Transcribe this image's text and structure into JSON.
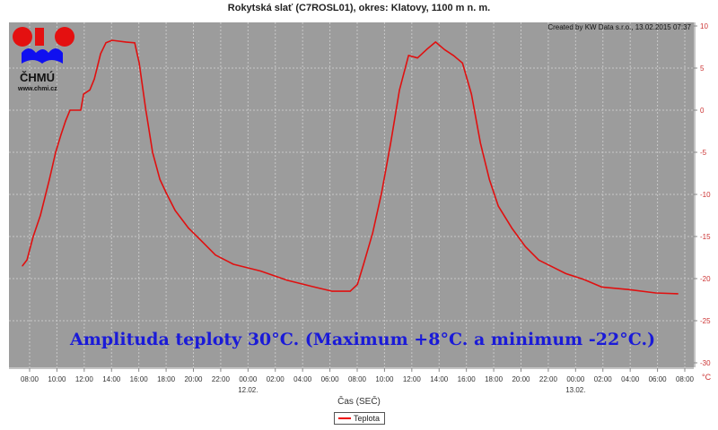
{
  "title": "Rokytská slať (C7ROSL01), okres: Klatovy, 1100 m n. m.",
  "created_by": "Created by KW Data s.r.o., 13.02.2015 07:37",
  "logo": {
    "name": "ČHMÚ",
    "url": "www.chmi.cz"
  },
  "annotation": "Amplituda teploty 30°C. (Maximum +8°C. a minimum -22°C.)",
  "colors": {
    "line": "#e01010",
    "plot_bg": "#9c9c9c",
    "annotation": "#1a1ad8",
    "axis_labels": "#cc3333"
  },
  "chart_data": {
    "type": "line",
    "title": "Rokytská slať (C7ROSL01), okres: Klatovy, 1100 m n. m.",
    "xlabel": "Čas (SEČ)",
    "ylabel": "°C",
    "x_units": "hours since 08:00 on 11.02.",
    "xlim": [
      -1.5,
      48.6
    ],
    "ylim": [
      -30,
      10
    ],
    "grid": true,
    "legend_position": "bottom-center",
    "y_ticks": [
      10,
      5,
      0,
      -5,
      -10,
      -15,
      -20,
      -25,
      -30
    ],
    "x_ticks": [
      {
        "t": 0,
        "label": "08:00"
      },
      {
        "t": 2,
        "label": "10:00"
      },
      {
        "t": 4,
        "label": "12:00"
      },
      {
        "t": 6,
        "label": "14:00"
      },
      {
        "t": 8,
        "label": "16:00"
      },
      {
        "t": 10,
        "label": "18:00"
      },
      {
        "t": 12,
        "label": "20:00"
      },
      {
        "t": 14,
        "label": "22:00"
      },
      {
        "t": 16,
        "label": "00:00",
        "date": "12.02."
      },
      {
        "t": 18,
        "label": "02:00"
      },
      {
        "t": 20,
        "label": "04:00"
      },
      {
        "t": 22,
        "label": "06:00"
      },
      {
        "t": 24,
        "label": "08:00"
      },
      {
        "t": 26,
        "label": "10:00"
      },
      {
        "t": 28,
        "label": "12:00"
      },
      {
        "t": 30,
        "label": "14:00"
      },
      {
        "t": 32,
        "label": "16:00"
      },
      {
        "t": 34,
        "label": "18:00"
      },
      {
        "t": 36,
        "label": "20:00"
      },
      {
        "t": 38,
        "label": "22:00"
      },
      {
        "t": 40,
        "label": "00:00",
        "date": "13.02."
      },
      {
        "t": 42,
        "label": "02:00"
      },
      {
        "t": 44,
        "label": "04:00"
      },
      {
        "t": 46,
        "label": "06:00"
      },
      {
        "t": 48,
        "label": "08:00"
      }
    ],
    "series": [
      {
        "name": "Teplota",
        "x": [
          -0.53,
          -0.2,
          0.26,
          0.79,
          1.45,
          1.91,
          2.3,
          2.63,
          2.96,
          3.75,
          3.95,
          4.41,
          4.74,
          5.2,
          5.59,
          6.05,
          7.04,
          7.7,
          8.03,
          8.49,
          9.01,
          9.54,
          10,
          10.66,
          11.64,
          12.63,
          13.62,
          14.93,
          16.91,
          18.88,
          20.86,
          22.17,
          23.49,
          24.01,
          24.47,
          25.13,
          25.79,
          26.45,
          27.1,
          27.76,
          28.42,
          29.08,
          29.74,
          30.39,
          31.05,
          31.71,
          32.37,
          33.03,
          33.68,
          34.34,
          35.33,
          36.32,
          37.3,
          38.29,
          39.28,
          40.59,
          41.91,
          43.88,
          45.86,
          47.5
        ],
        "values": [
          -18.5,
          -17.8,
          -15,
          -12.5,
          -8.2,
          -5,
          -2.9,
          -1.3,
          0,
          0,
          1.9,
          2.4,
          3.7,
          6.7,
          8,
          8.3,
          8.1,
          8,
          5.6,
          0.3,
          -5,
          -8.2,
          -9.8,
          -11.9,
          -14,
          -15.6,
          -17.2,
          -18.3,
          -19.1,
          -20.2,
          -21,
          -21.5,
          -21.5,
          -20.7,
          -18.3,
          -14.6,
          -9.8,
          -3.9,
          2.4,
          6.5,
          6.2,
          7.2,
          8.1,
          7.2,
          6.5,
          5.6,
          1.9,
          -3.9,
          -8.2,
          -11.4,
          -14,
          -16.2,
          -17.8,
          -18.6,
          -19.4,
          -20.1,
          -21,
          -21.3,
          -21.7,
          -21.8
        ]
      }
    ]
  }
}
